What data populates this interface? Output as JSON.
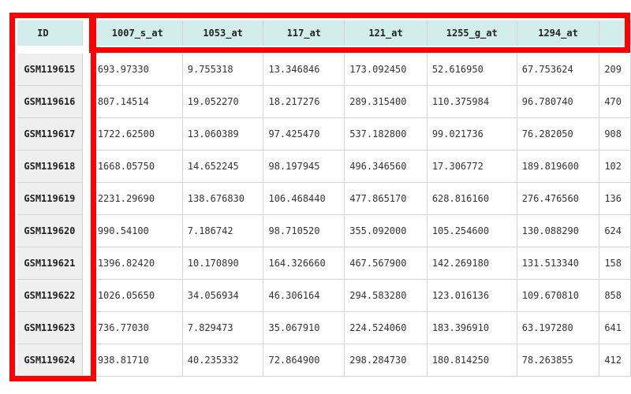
{
  "table": {
    "id_header": "ID",
    "columns": [
      "1007_s_at",
      "1053_at",
      "117_at",
      "121_at",
      "1255_g_at",
      "1294_at",
      ""
    ],
    "rows": [
      {
        "id": "GSM119615",
        "values": [
          "693.97330",
          "9.755318",
          "13.346846",
          "173.092450",
          "52.616950",
          "67.753624",
          "209"
        ]
      },
      {
        "id": "GSM119616",
        "values": [
          "807.14514",
          "19.052270",
          "18.217276",
          "289.315400",
          "110.375984",
          "96.780740",
          "470"
        ]
      },
      {
        "id": "GSM119617",
        "values": [
          "1722.62500",
          "13.060389",
          "97.425470",
          "537.182800",
          "99.021736",
          "76.282050",
          "908"
        ]
      },
      {
        "id": "GSM119618",
        "values": [
          "1668.05750",
          "14.652245",
          "98.197945",
          "496.346560",
          "17.306772",
          "189.819600",
          "102"
        ]
      },
      {
        "id": "GSM119619",
        "values": [
          "2231.29690",
          "138.676830",
          "106.468440",
          "477.865170",
          "628.816160",
          "276.476560",
          "136"
        ]
      },
      {
        "id": "GSM119620",
        "values": [
          "990.54100",
          "7.186742",
          "98.710520",
          "355.092000",
          "105.254600",
          "130.088290",
          "624"
        ]
      },
      {
        "id": "GSM119621",
        "values": [
          "1396.82420",
          "10.170890",
          "164.326660",
          "467.567900",
          "142.269180",
          "131.513340",
          "158"
        ]
      },
      {
        "id": "GSM119622",
        "values": [
          "1026.05650",
          "34.056934",
          "46.306164",
          "294.583280",
          "123.016136",
          "109.670810",
          "858"
        ]
      },
      {
        "id": "GSM119623",
        "values": [
          "736.77030",
          "7.829473",
          "35.067910",
          "224.524060",
          "183.396910",
          "63.197280",
          "641"
        ]
      },
      {
        "id": "GSM119624",
        "values": [
          "938.81710",
          "40.235332",
          "72.864900",
          "298.284730",
          "180.814250",
          "78.263855",
          "412"
        ]
      }
    ]
  },
  "highlights": {
    "color": "#ff0000",
    "targets": [
      "id-column",
      "header-row"
    ]
  },
  "colors": {
    "header_bg": "#d3ecec",
    "rowhead_bg": "#efefef",
    "grid_line": "#d4d4d4"
  }
}
